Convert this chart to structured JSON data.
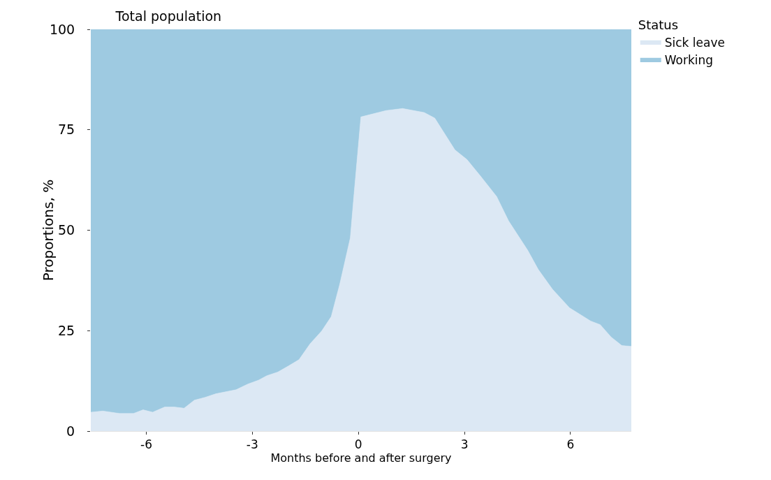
{
  "chart_data": {
    "type": "area",
    "title": "Total population",
    "xlabel": "Months before and after surgery",
    "ylabel": "Proportions, %",
    "legend_title": "Status",
    "stacked": true,
    "legend": "top right",
    "x": [
      -7.57,
      -7.23,
      -6.76,
      -6.36,
      -6.09,
      -5.82,
      -5.48,
      -5.21,
      -4.93,
      -4.64,
      -4.34,
      -4.03,
      -3.46,
      -3.13,
      -2.82,
      -2.59,
      -2.28,
      -1.98,
      -1.68,
      -1.37,
      -1.04,
      -0.77,
      -0.53,
      -0.23,
      -0.13,
      0.07,
      0.78,
      1.25,
      1.86,
      2.16,
      2.73,
      3.07,
      3.47,
      3.91,
      4.25,
      4.79,
      5.09,
      5.49,
      5.97,
      6.57,
      6.84,
      7.15,
      7.45,
      7.72
    ],
    "series": [
      {
        "name": "Sick leave",
        "color": "#dce8f4",
        "values": [
          4.7,
          5.0,
          4.4,
          4.4,
          5.3,
          4.7,
          6.0,
          6.0,
          5.7,
          7.7,
          8.4,
          9.3,
          10.3,
          11.7,
          12.7,
          13.8,
          14.7,
          16.2,
          17.8,
          21.7,
          24.9,
          28.5,
          36.5,
          48.1,
          58.4,
          78.2,
          79.8,
          80.3,
          79.3,
          77.9,
          70.0,
          67.6,
          63.3,
          58.4,
          52.3,
          45.0,
          40.2,
          35.3,
          30.7,
          27.4,
          26.5,
          23.4,
          21.3,
          21.1
        ]
      },
      {
        "name": "Working",
        "color": "#9ecae1",
        "values": [
          95.3,
          95.0,
          95.6,
          95.6,
          94.7,
          95.3,
          94.0,
          94.0,
          94.3,
          92.3,
          91.6,
          90.7,
          89.7,
          88.3,
          87.3,
          86.2,
          85.3,
          83.8,
          82.2,
          78.3,
          75.1,
          71.5,
          63.5,
          51.9,
          41.6,
          21.8,
          20.2,
          19.7,
          20.7,
          22.1,
          30.0,
          32.4,
          36.7,
          41.6,
          47.7,
          55.0,
          59.8,
          64.7,
          69.3,
          72.6,
          73.5,
          76.6,
          78.7,
          78.9
        ]
      }
    ],
    "xlim": [
      -7.57,
      7.72
    ],
    "ylim": [
      0,
      100
    ],
    "xticks": [
      -6,
      -3,
      0,
      3,
      6
    ],
    "yticks": [
      0,
      25,
      50,
      75,
      100
    ]
  }
}
